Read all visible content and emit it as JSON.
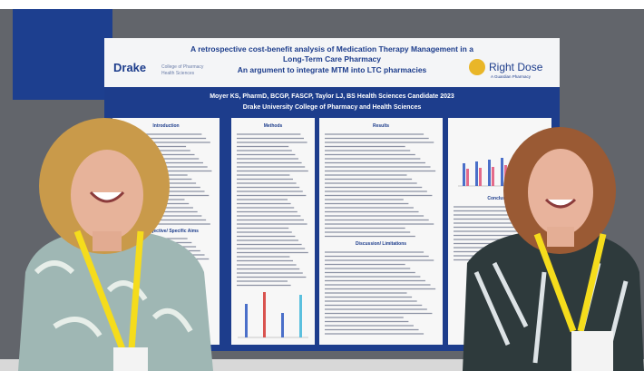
{
  "poster": {
    "title_lines": [
      "A retrospective cost-benefit analysis of Medication Therapy Management in a",
      "Long-Term Care Pharmacy"
    ],
    "subtitle": "An argument to integrate MTM into LTC pharmacies",
    "authors": "Moyer KS, PharmD, BCGP, FASCP, Taylor LJ, BS Health Sciences Candidate 2023",
    "affiliation": "Drake University College of Pharmacy and Health Sciences",
    "logo_left": "Drake",
    "logo_left_sub": [
      "College of Pharmacy",
      "Health Sciences"
    ],
    "logo_right": "Right Dose",
    "logo_right_sub": "A Guardian Pharmacy",
    "sections": {
      "introduction": "Introduction",
      "methods": "Methods",
      "results": "Results",
      "conclusion": "Conclusion",
      "aims": "Objective/ Specific Aims",
      "discussion": "Discussion/ Limitations"
    }
  }
}
